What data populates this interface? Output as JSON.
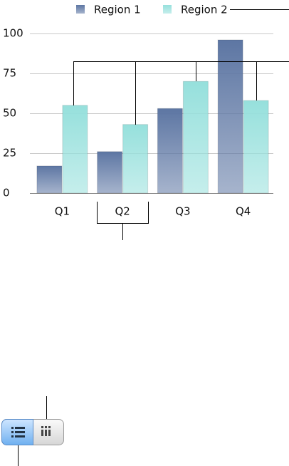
{
  "chart_data": {
    "type": "bar",
    "categories": [
      "Q1",
      "Q2",
      "Q3",
      "Q4"
    ],
    "series": [
      {
        "name": "Region 1",
        "color": "#5d76a3",
        "values": [
          17,
          26,
          53,
          96
        ]
      },
      {
        "name": "Region 2",
        "color": "#96e0dc",
        "values": [
          55,
          43,
          70,
          58
        ]
      }
    ],
    "ylim": [
      0,
      100
    ],
    "yticks": [
      0,
      25,
      50,
      75,
      100
    ],
    "grid": true,
    "legend": "top"
  }
}
